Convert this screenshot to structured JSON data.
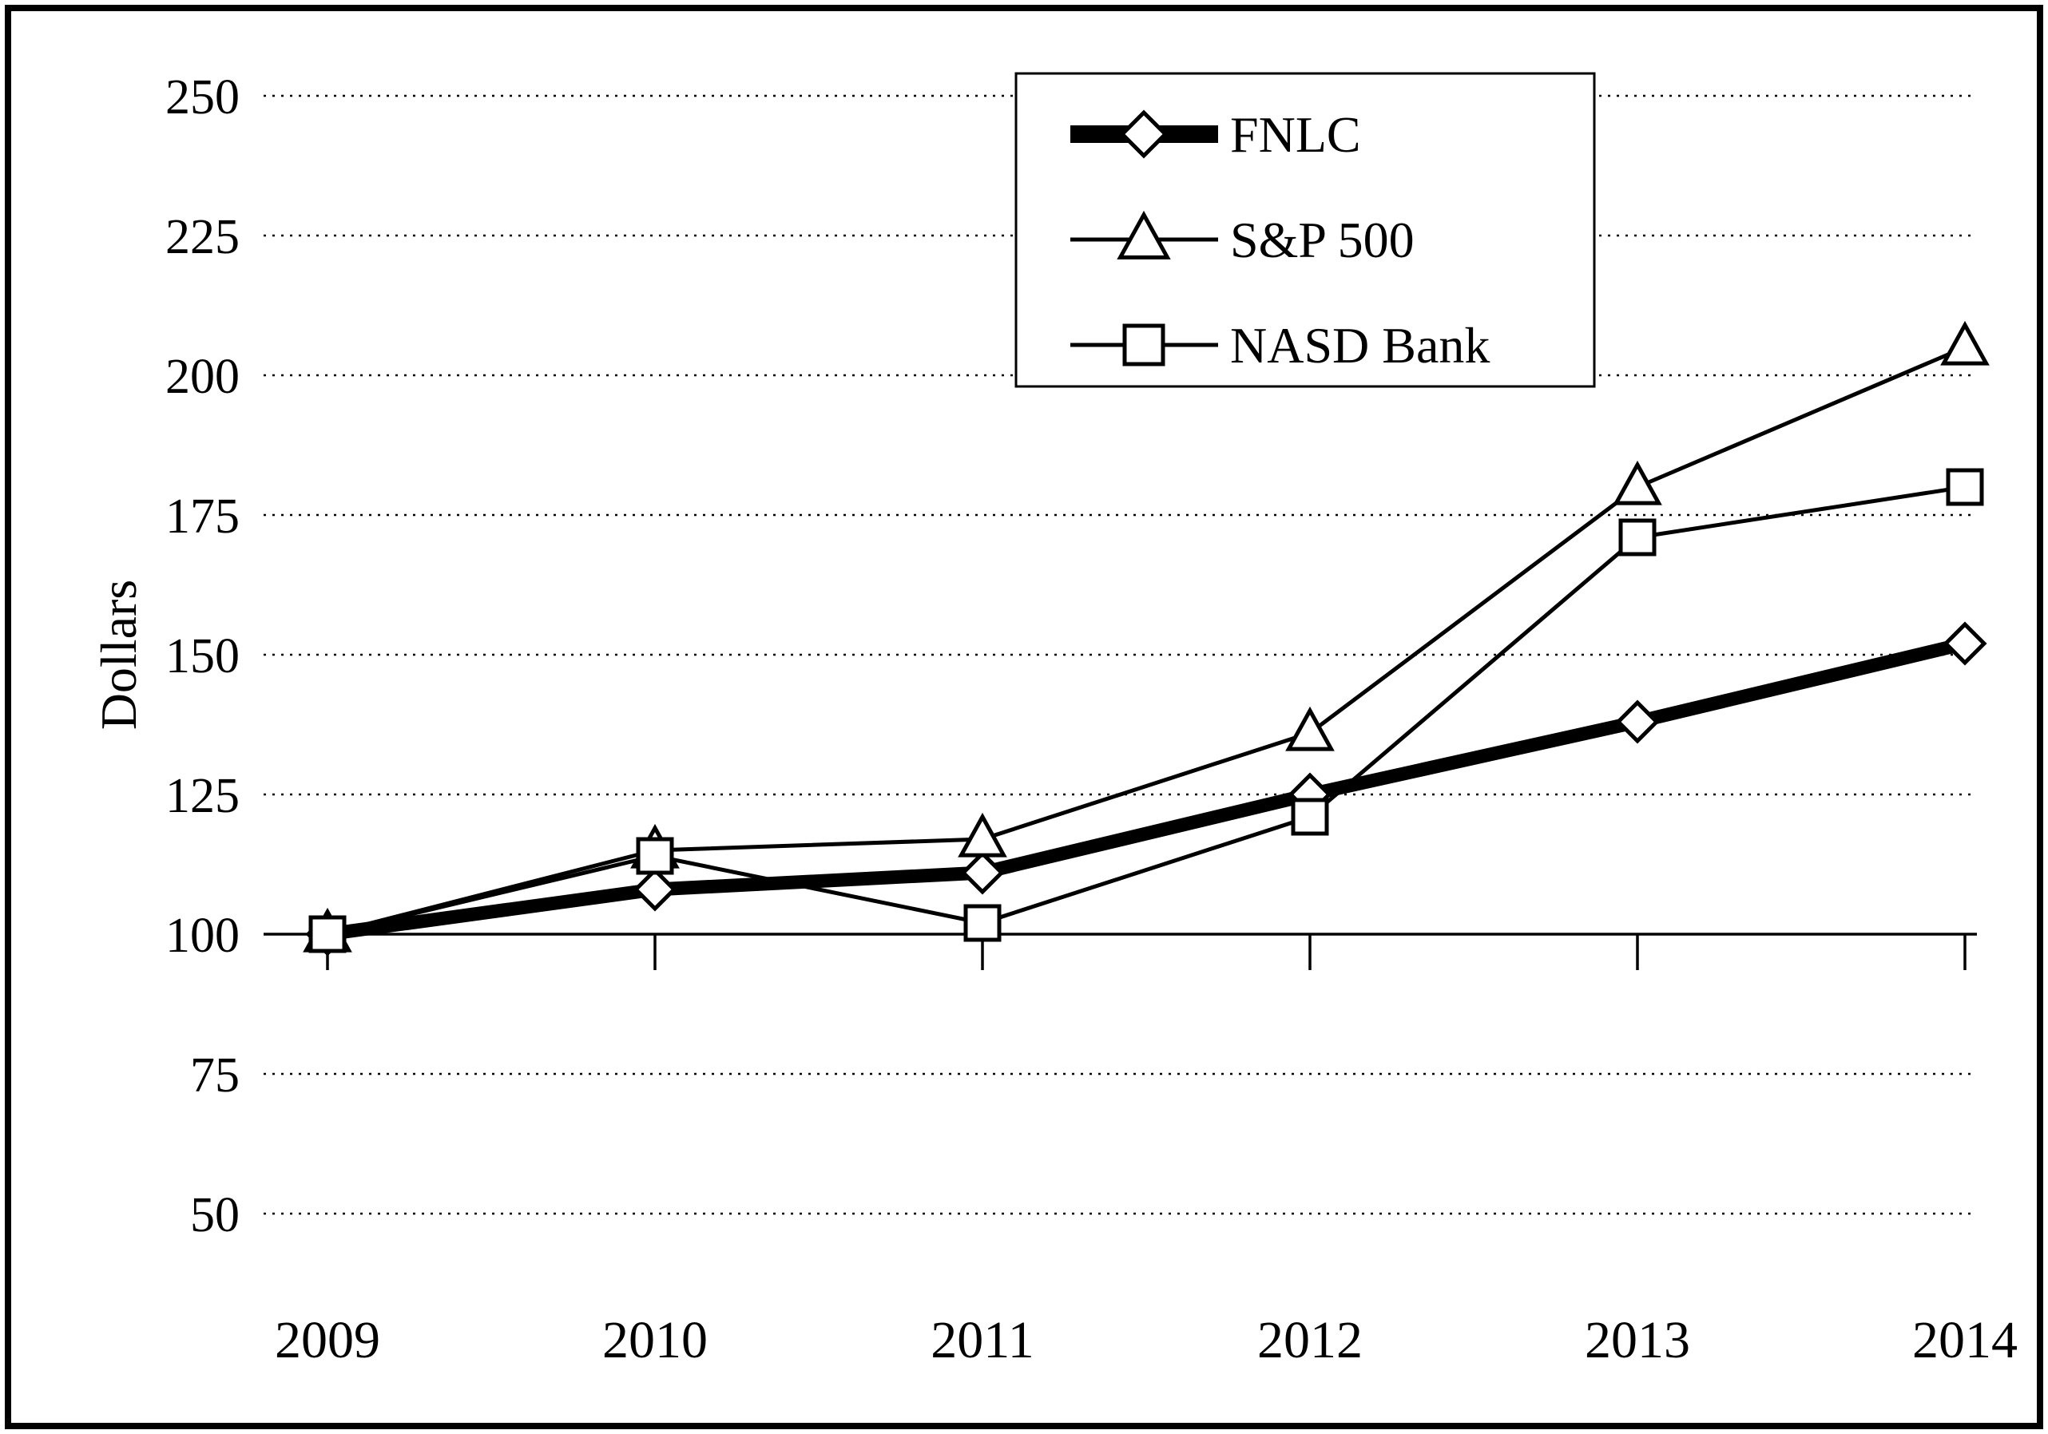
{
  "frame": {
    "border_color": "#000000"
  },
  "chart_data": {
    "type": "line",
    "title": "",
    "xlabel": "",
    "ylabel": "Dollars",
    "x": [
      "2009",
      "2010",
      "2011",
      "2012",
      "2013",
      "2014"
    ],
    "series": [
      {
        "name": "FNLC",
        "marker": "diamond",
        "line_weight": "thick",
        "color": "#000000",
        "values": [
          100,
          108,
          111,
          125,
          138,
          152
        ]
      },
      {
        "name": "S&P 500",
        "marker": "triangle",
        "line_weight": "thin",
        "color": "#000000",
        "values": [
          100,
          115,
          117,
          136,
          180,
          205
        ]
      },
      {
        "name": "NASD Bank",
        "marker": "square",
        "line_weight": "thin",
        "color": "#000000",
        "values": [
          100,
          114,
          102,
          121,
          171,
          180
        ]
      }
    ],
    "ylim": [
      50,
      250
    ],
    "yticks": [
      250,
      225,
      200,
      175,
      150,
      125,
      100,
      75,
      50
    ],
    "axis_cross_value": 100,
    "grid": "horizontal-dashed",
    "legend_position": "top-center",
    "legend_entries": [
      "FNLC",
      "S&P 500",
      "NASD Bank"
    ]
  }
}
